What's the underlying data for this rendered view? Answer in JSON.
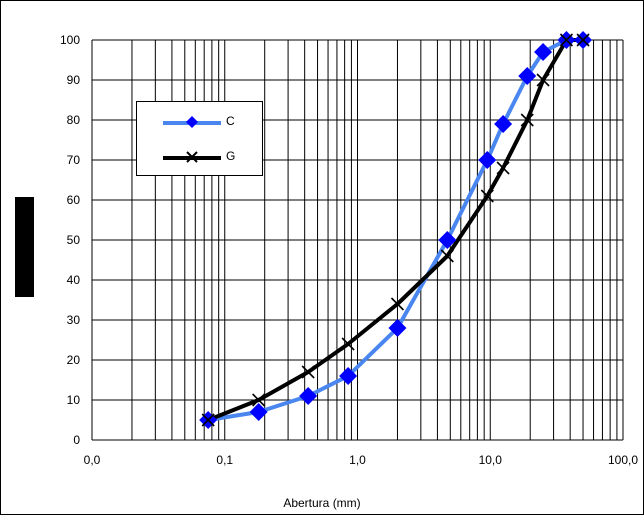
{
  "chart_data": {
    "type": "line",
    "title": "",
    "xlabel": "Abertura (mm)",
    "ylabel": "",
    "x_scale": "log",
    "xlim": [
      0.01,
      100
    ],
    "ylim": [
      0,
      100
    ],
    "x_ticks": [
      0.01,
      0.1,
      1,
      10,
      100
    ],
    "x_tick_labels": [
      "0,0",
      "0,1",
      "1,0",
      "10,0",
      "100,0"
    ],
    "y_ticks": [
      0,
      10,
      20,
      30,
      40,
      50,
      60,
      70,
      80,
      90,
      100
    ],
    "y_tick_labels": [
      "0",
      "10",
      "20",
      "30",
      "40",
      "50",
      "60",
      "70",
      "80",
      "90",
      "100"
    ],
    "grid": true,
    "legend_position": "upper-left",
    "series": [
      {
        "name": "C",
        "color": "#4a86f0",
        "marker": "diamond-blue",
        "x": [
          0.075,
          0.18,
          0.425,
          0.85,
          2.0,
          4.75,
          9.5,
          12.5,
          19.0,
          25.0,
          37.5,
          50.0
        ],
        "y": [
          5,
          7,
          11,
          16,
          28,
          50,
          70,
          79,
          91,
          97,
          100,
          100
        ]
      },
      {
        "name": "G",
        "color": "#000000",
        "marker": "x-black",
        "x": [
          0.075,
          0.18,
          0.425,
          0.85,
          2.0,
          4.75,
          9.5,
          12.5,
          19.0,
          25.0,
          37.5,
          50.0
        ],
        "y": [
          5,
          10,
          17,
          24,
          34,
          46,
          61,
          68,
          80,
          90,
          100,
          100
        ]
      }
    ]
  }
}
